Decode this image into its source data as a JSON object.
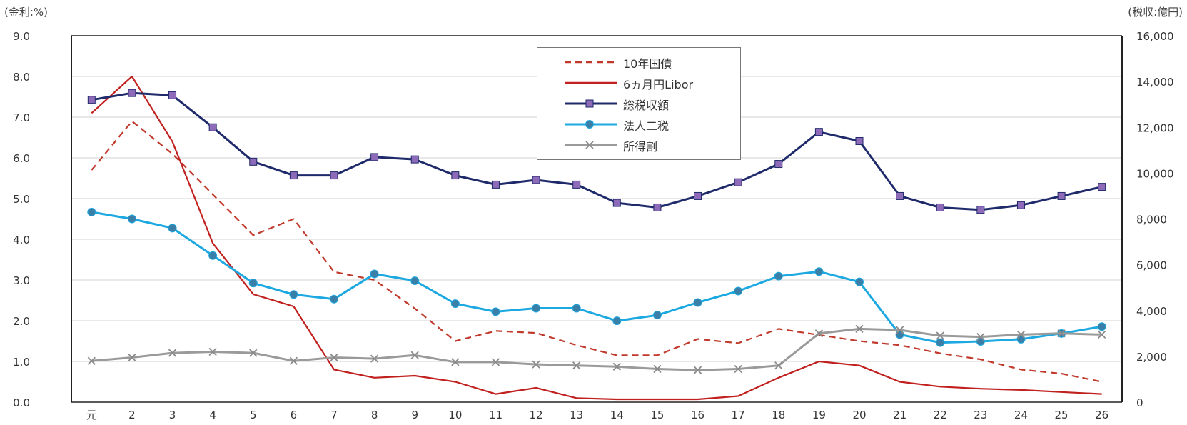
{
  "chart_data": {
    "type": "line",
    "title": "",
    "left_axis_label": "(金利:%)",
    "right_axis_label": "(税収:億円)",
    "x": [
      "元",
      "2",
      "3",
      "4",
      "5",
      "6",
      "7",
      "8",
      "9",
      "10",
      "11",
      "12",
      "13",
      "14",
      "15",
      "16",
      "17",
      "18",
      "19",
      "20",
      "21",
      "22",
      "23",
      "24",
      "25",
      "26"
    ],
    "y_left_ticks": [
      "0.0",
      "1.0",
      "2.0",
      "3.0",
      "4.0",
      "5.0",
      "6.0",
      "7.0",
      "8.0",
      "9.0"
    ],
    "y_right_ticks": [
      "0",
      "2,000",
      "4,000",
      "6,000",
      "8,000",
      "10,000",
      "12,000",
      "14,000",
      "16,000"
    ],
    "ylim_left": [
      0,
      9
    ],
    "ylim_right": [
      0,
      16000
    ],
    "grid": true,
    "legend_position": "top-center",
    "series": [
      {
        "name": "10年国債",
        "axis": "left",
        "color": "#c0392b",
        "style": "dashed",
        "marker": "none",
        "values": [
          5.7,
          6.9,
          6.1,
          5.1,
          4.1,
          4.5,
          3.2,
          3.0,
          2.3,
          1.5,
          1.75,
          1.7,
          1.4,
          1.15,
          1.15,
          1.55,
          1.45,
          1.8,
          1.65,
          1.5,
          1.4,
          1.2,
          1.05,
          0.8,
          0.7,
          0.5
        ]
      },
      {
        "name": "6ヵ月円Libor",
        "axis": "left",
        "color": "#c0201e",
        "style": "solid",
        "marker": "none",
        "values": [
          7.1,
          8.0,
          6.4,
          3.9,
          2.65,
          2.35,
          0.8,
          0.6,
          0.65,
          0.5,
          0.2,
          0.35,
          0.1,
          0.07,
          0.07,
          0.07,
          0.15,
          0.6,
          1.0,
          0.9,
          0.5,
          0.38,
          0.33,
          0.3,
          0.25,
          0.2
        ]
      },
      {
        "name": "総税収額",
        "axis": "right",
        "color": "#1f2a6b",
        "style": "solid",
        "marker": "square",
        "marker_color": "#8e6bb8",
        "values": [
          13200,
          13500,
          13400,
          12000,
          10500,
          9900,
          9900,
          10700,
          10600,
          9900,
          9500,
          9700,
          9500,
          8700,
          8500,
          9000,
          9600,
          10400,
          11800,
          11400,
          9000,
          8500,
          8400,
          8600,
          9000,
          9400
        ]
      },
      {
        "name": "法人二税",
        "axis": "right",
        "color": "#1ca8e0",
        "style": "solid",
        "marker": "circle",
        "marker_color": "#3a7fa8",
        "values": [
          8300,
          8000,
          7600,
          6400,
          5200,
          4700,
          4500,
          5600,
          5300,
          4300,
          3950,
          4100,
          4100,
          3550,
          3800,
          4350,
          4850,
          5500,
          5700,
          5250,
          2950,
          2600,
          2650,
          2750,
          3000,
          3300
        ]
      },
      {
        "name": "所得割",
        "axis": "right",
        "color": "#9a9a9a",
        "style": "solid",
        "marker": "x",
        "marker_color": "#8a8a8a",
        "values": [
          1800,
          1950,
          2150,
          2200,
          2150,
          1800,
          1950,
          1900,
          2050,
          1750,
          1750,
          1650,
          1600,
          1550,
          1450,
          1400,
          1450,
          1600,
          3000,
          3200,
          3150,
          2900,
          2850,
          2950,
          3000,
          2950
        ]
      }
    ]
  }
}
